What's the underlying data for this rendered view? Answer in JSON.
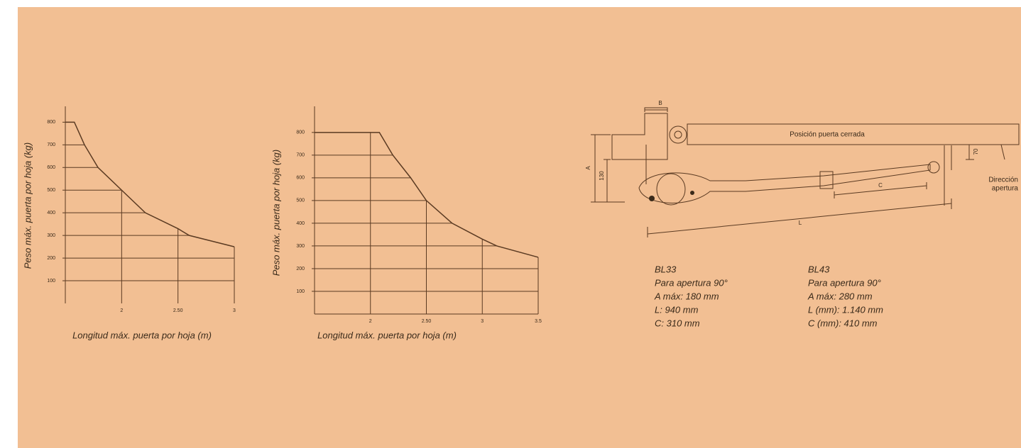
{
  "chart_data": [
    {
      "type": "line",
      "x": [
        1.5,
        1.58,
        1.67,
        1.79,
        2,
        2.21,
        2.5,
        2.6,
        3
      ],
      "values": [
        800,
        800,
        700,
        600,
        500,
        400,
        330,
        300,
        250
      ],
      "xlim": [
        1.5,
        3
      ],
      "ylim": [
        0,
        870
      ],
      "xticks": [
        2,
        {
          "value": 2.5,
          "label": "2.50"
        },
        3
      ],
      "yticks": [
        100,
        200,
        300,
        400,
        500,
        600,
        700,
        800
      ],
      "y_label": "Peso máx. puerta por hoja (kg)",
      "x_label": "Longitud máx. puerta por hoja (m)",
      "color": "#5a3a22",
      "x_axis_line": false
    },
    {
      "type": "line",
      "x": [
        1.5,
        2.08,
        2.2,
        2.36,
        2.5,
        2.73,
        3,
        3.13,
        3.5
      ],
      "values": [
        800,
        800,
        700,
        600,
        500,
        400,
        330,
        300,
        250
      ],
      "xlim": [
        1.5,
        3.5
      ],
      "ylim": [
        0,
        915
      ],
      "xticks": [
        2,
        {
          "value": 2.5,
          "label": "2.50"
        },
        3,
        3.5
      ],
      "yticks": [
        100,
        200,
        300,
        400,
        500,
        600,
        700,
        800
      ],
      "y_label": "Peso máx. puerta por hoja (kg)",
      "x_label": "Longitud máx. puerta por hoja (m)",
      "color": "#5a3a22",
      "x_axis_line": true
    }
  ],
  "drawing": {
    "B": "B",
    "A": "A",
    "dim_130": "130",
    "door": "Posición puerta cerrada",
    "direction": [
      "Dirección",
      "apertura"
    ],
    "C": "C",
    "dim_70": "70",
    "L": "L"
  },
  "specs": [
    {
      "model": "BL33",
      "lines": [
        "Para apertura 90°",
        "A máx: 180 mm",
        "L: 940 mm",
        "C: 310 mm"
      ]
    },
    {
      "model": "BL43",
      "lines": [
        "Para apertura 90°",
        "A máx: 280 mm",
        "L (mm): 1.140 mm",
        "C (mm): 410 mm"
      ]
    }
  ]
}
